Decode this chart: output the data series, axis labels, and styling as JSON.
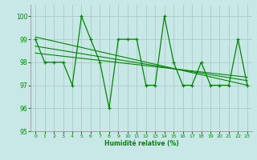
{
  "title": "",
  "xlabel": "Humidité relative (%)",
  "ylabel": "",
  "xlim": [
    -0.5,
    23.5
  ],
  "ylim": [
    95,
    100.5
  ],
  "yticks": [
    95,
    96,
    97,
    98,
    99,
    100
  ],
  "xticks": [
    0,
    1,
    2,
    3,
    4,
    5,
    6,
    7,
    8,
    9,
    10,
    11,
    12,
    13,
    14,
    15,
    16,
    17,
    18,
    19,
    20,
    21,
    22,
    23
  ],
  "background_color": "#c8e8e8",
  "grid_color": "#b0c8c8",
  "line_color": "#008800",
  "data_y": [
    99,
    98,
    98,
    98,
    97,
    100,
    99,
    98,
    96,
    99,
    99,
    99,
    97,
    97,
    100,
    98,
    97,
    97,
    98,
    97,
    97,
    97,
    99,
    97
  ],
  "trend1_x": [
    0,
    23
  ],
  "trend1_y": [
    98.7,
    97.2
  ],
  "trend2_x": [
    0,
    23
  ],
  "trend2_y": [
    99.1,
    97.0
  ],
  "trend3_x": [
    0,
    23
  ],
  "trend3_y": [
    98.4,
    97.35
  ]
}
